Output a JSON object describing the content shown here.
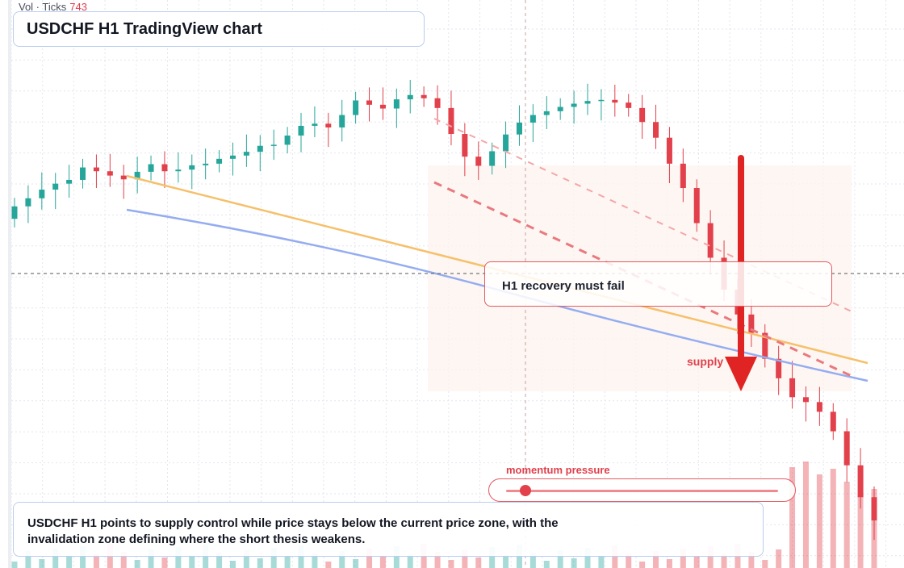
{
  "header": {
    "title": "USDCHF H1 TradingView chart",
    "vol_label": "Vol · Ticks",
    "vol_value": "743"
  },
  "annotations": {
    "recovery": "H1 recovery must fail",
    "supply": "supply",
    "summary": "USDCHF H1 points to supply control while price stays below the current price zone, with the invalidation zone defining where the short thesis weakens."
  },
  "momentum": {
    "label": "momentum pressure",
    "level": 0.07
  },
  "colors": {
    "up": "#26a69a",
    "down": "#e2404b",
    "zone_fill": "#fdf4ef",
    "orange_line": "#f6c06a",
    "blue_line": "#94acf0",
    "grid": "#e3e6ee",
    "arrow": "#e02424"
  },
  "chart_data": {
    "type": "candlestick",
    "symbol": "USDCHF",
    "timeframe": "H1",
    "note": "no price or time axis labels are printed; values are relative price levels (0-100) estimated from the candle positions",
    "ylim": [
      0,
      100
    ],
    "close": [
      66.3,
      67.8,
      69.4,
      70.5,
      71.2,
      73.5,
      72.8,
      72.0,
      71.3,
      72.7,
      74.1,
      72.8,
      73.1,
      73.9,
      74.2,
      75.1,
      75.7,
      76.4,
      77.5,
      77.7,
      79.4,
      81.2,
      81.6,
      80.9,
      83.2,
      85.9,
      85.1,
      84.4,
      86.1,
      86.9,
      86.3,
      84.5,
      79.7,
      75.5,
      73.8,
      76.5,
      79.6,
      81.8,
      83.2,
      83.9,
      84.7,
      85.3,
      85.8,
      86.0,
      85.5,
      84.5,
      81.9,
      79.0,
      74.2,
      69.7,
      63.2,
      56.8,
      50.9,
      46.3,
      42.9,
      38.1,
      34.5,
      31.0,
      30.1,
      28.3,
      24.7,
      18.4,
      12.5,
      8.2
    ],
    "open": [
      64.0,
      66.3,
      67.8,
      69.4,
      70.5,
      71.2,
      73.5,
      72.8,
      72.0,
      71.3,
      72.7,
      74.1,
      72.8,
      73.1,
      73.9,
      74.2,
      75.1,
      75.7,
      76.4,
      77.5,
      77.7,
      79.4,
      81.2,
      81.6,
      80.9,
      83.2,
      85.9,
      85.1,
      84.4,
      86.1,
      86.9,
      86.3,
      84.5,
      79.7,
      75.5,
      73.8,
      76.5,
      79.6,
      81.8,
      83.2,
      83.9,
      84.7,
      85.3,
      85.8,
      86.0,
      85.5,
      84.5,
      81.9,
      79.0,
      74.2,
      69.7,
      63.2,
      56.8,
      50.9,
      46.3,
      42.9,
      38.1,
      34.5,
      31.0,
      30.1,
      28.3,
      24.7,
      18.4,
      12.5
    ],
    "overlays": [
      {
        "kind": "trendline",
        "color": "orange",
        "from": [
          0.14,
          0.31
        ],
        "to": [
          0.96,
          0.64
        ]
      },
      {
        "kind": "trendline",
        "color": "blue",
        "from": [
          0.14,
          0.37
        ],
        "to": [
          0.96,
          0.67
        ]
      },
      {
        "kind": "dashed-trendline",
        "color": "red",
        "from": [
          0.48,
          0.32
        ],
        "to": [
          0.94,
          0.66
        ]
      },
      {
        "kind": "dashed-trendline",
        "color": "light-red",
        "from": [
          0.48,
          0.21
        ],
        "to": [
          0.94,
          0.55
        ]
      }
    ],
    "crosshair": true,
    "grid": true,
    "volume": true
  }
}
